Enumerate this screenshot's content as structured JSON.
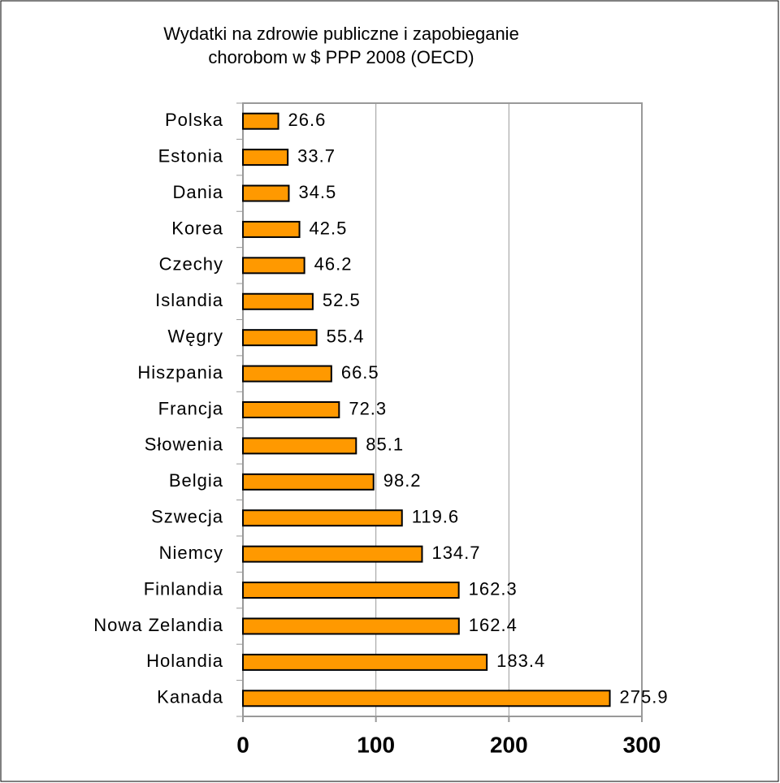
{
  "chart_data": {
    "type": "bar",
    "orientation": "horizontal",
    "title": [
      "Wydatki na zdrowie publiczne i zapobieganie",
      "chorobom w $ PPP 2008 (OECD)"
    ],
    "categories": [
      "Polska",
      "Estonia",
      "Dania",
      "Korea",
      "Czechy",
      "Islandia",
      "Węgry",
      "Hiszpania",
      "Francja",
      "Słowenia",
      "Belgia",
      "Szwecja",
      "Niemcy",
      "Finlandia",
      "Nowa Zelandia",
      "Holandia",
      "Kanada"
    ],
    "values": [
      26.6,
      33.7,
      34.5,
      42.5,
      46.2,
      52.5,
      55.4,
      66.5,
      72.3,
      85.1,
      98.2,
      119.6,
      134.7,
      162.3,
      162.4,
      183.4,
      275.9
    ],
    "color": "#ff9900",
    "xlim": [
      0,
      300
    ],
    "xticks": [
      0,
      100,
      200,
      300
    ],
    "grid": true
  }
}
